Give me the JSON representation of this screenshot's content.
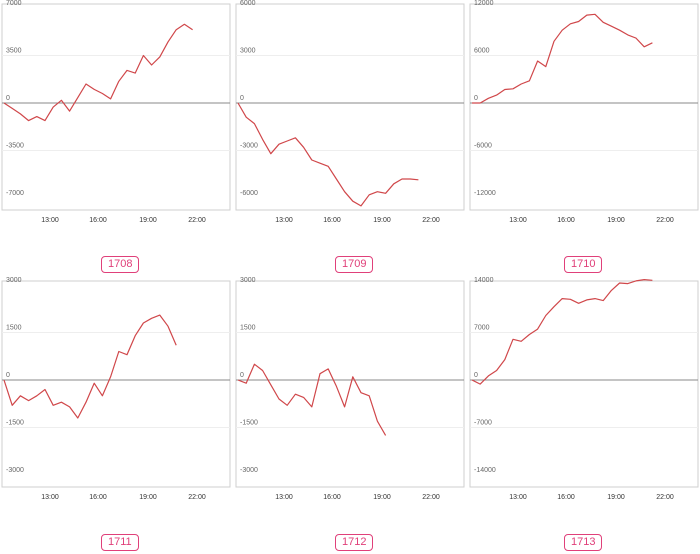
{
  "chart_data": [
    {
      "type": "line",
      "name": "1708",
      "ylim": [
        -7000,
        7000
      ],
      "y_ticks": [
        7000,
        3500,
        0,
        -3500,
        -7000
      ],
      "x_ticks": [
        "13:00",
        "16:00",
        "19:00",
        "22:00"
      ],
      "color": "#d0474a",
      "values": [
        0,
        -400,
        -800,
        -1300,
        -1000,
        -1300,
        -300,
        200,
        -600,
        400,
        1400,
        1000,
        700,
        300,
        1600,
        2400,
        2200,
        3500,
        2800,
        3400,
        4500,
        5400,
        5800,
        5400
      ]
    },
    {
      "type": "line",
      "name": "1709",
      "ylim": [
        -6000,
        6000
      ],
      "y_ticks": [
        6000,
        3000,
        0,
        -3000,
        -6000
      ],
      "x_ticks": [
        "13:00",
        "16:00",
        "19:00",
        "22:00"
      ],
      "color": "#d0474a",
      "values": [
        0,
        -900,
        -1300,
        -2300,
        -3200,
        -2600,
        -2400,
        -2200,
        -2800,
        -3600,
        -3800,
        -4000,
        -4800,
        -5600,
        -6200,
        -6500,
        -5800,
        -5600,
        -5700,
        -5100,
        -4800,
        -4800,
        -4850
      ]
    },
    {
      "type": "line",
      "name": "1710",
      "ylim": [
        -12000,
        12000
      ],
      "y_ticks": [
        12000,
        6000,
        0,
        -6000,
        -12000
      ],
      "x_ticks": [
        "13:00",
        "16:00",
        "19:00",
        "22:00"
      ],
      "color": "#d0474a",
      "values": [
        0,
        0,
        600,
        1000,
        1700,
        1800,
        2400,
        2800,
        5300,
        4600,
        7800,
        9200,
        10000,
        10300,
        11100,
        11200,
        10200,
        9700,
        9200,
        8600,
        8200,
        7100,
        7600
      ]
    },
    {
      "type": "line",
      "name": "1711",
      "ylim": [
        -3000,
        3000
      ],
      "y_ticks": [
        3000,
        1500,
        0,
        -1500,
        -3000
      ],
      "x_ticks": [
        "13:00",
        "16:00",
        "19:00",
        "22:00"
      ],
      "color": "#d0474a",
      "values": [
        0,
        -800,
        -500,
        -650,
        -500,
        -300,
        -800,
        -700,
        -850,
        -1200,
        -700,
        -100,
        -500,
        100,
        900,
        800,
        1400,
        1800,
        1950,
        2050,
        1700,
        1100
      ]
    },
    {
      "type": "line",
      "name": "1712",
      "ylim": [
        -3000,
        3000
      ],
      "y_ticks": [
        3000,
        1500,
        0,
        -1500,
        -3000
      ],
      "x_ticks": [
        "13:00",
        "16:00",
        "19:00",
        "22:00"
      ],
      "color": "#d0474a",
      "values": [
        0,
        -100,
        500,
        300,
        -150,
        -600,
        -800,
        -450,
        -550,
        -850,
        200,
        350,
        -200,
        -850,
        100,
        -400,
        -500,
        -1300,
        -1750
      ]
    },
    {
      "type": "line",
      "name": "1713",
      "ylim": [
        -14000,
        14000
      ],
      "y_ticks": [
        14000,
        7000,
        0,
        -7000,
        -14000
      ],
      "x_ticks": [
        "13:00",
        "16:00",
        "19:00",
        "22:00"
      ],
      "color": "#d0474a",
      "values": [
        0,
        -600,
        600,
        1400,
        3000,
        6000,
        5700,
        6700,
        7500,
        9500,
        10800,
        12000,
        11900,
        11300,
        11800,
        12000,
        11700,
        13200,
        14300,
        14200,
        14600,
        14800,
        14700
      ]
    }
  ]
}
